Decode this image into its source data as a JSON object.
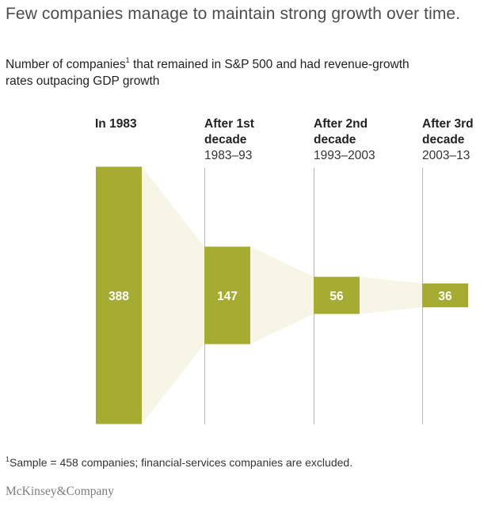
{
  "title": "Few companies manage to maintain strong growth over time.",
  "subtitle": {
    "before_sup": "Number of companies",
    "sup": "1",
    "after_sup": " that remained in S&P 500 and had revenue-growth rates outpacing GDP growth"
  },
  "columns": [
    {
      "bold": "In 1983",
      "range": ""
    },
    {
      "bold": "After 1st decade",
      "range": "1983–93"
    },
    {
      "bold": "After 2nd decade",
      "range": "1993–2003"
    },
    {
      "bold": "After 3rd decade",
      "range": "2003–13"
    }
  ],
  "footnote": {
    "sup": "1",
    "text": "Sample = 458 companies; financial-services companies are excluded."
  },
  "logo": "McKinsey&Company",
  "colors": {
    "bar": "#a6ab32",
    "funnel": "#f7f5e6",
    "divider": "#b5b5b5",
    "label": "#ffffff"
  },
  "chart_data": {
    "type": "bar",
    "categories": [
      "In 1983",
      "After 1st decade",
      "After 2nd decade",
      "After 3rd decade"
    ],
    "values": [
      388,
      147,
      56,
      36
    ],
    "title": "Few companies manage to maintain strong growth over time.",
    "xlabel": "",
    "ylabel": "",
    "grid": false,
    "legend": "none"
  }
}
